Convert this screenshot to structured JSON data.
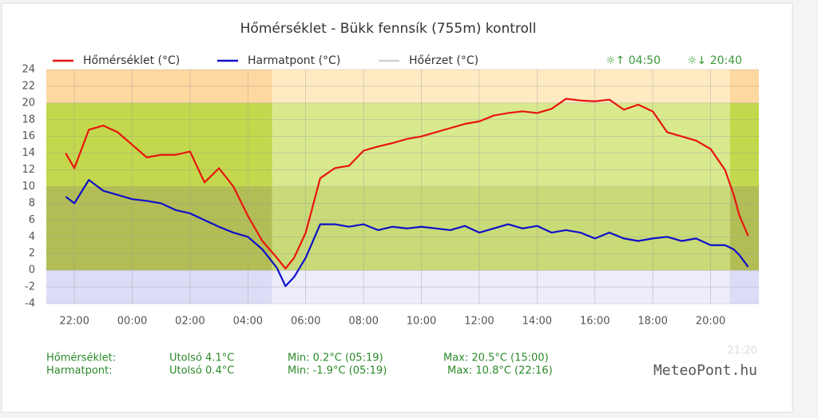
{
  "chart_data": {
    "type": "line",
    "title": "Hőmérséklet - Bükk fennsík (755m) kontroll",
    "x": [
      21.7,
      22,
      22.5,
      23,
      23.5,
      24,
      24.5,
      25,
      25.5,
      26,
      26.5,
      27,
      27.5,
      28,
      28.5,
      29,
      29.3,
      29.6,
      30,
      30.5,
      31,
      31.5,
      32,
      32.5,
      33,
      33.5,
      34,
      34.5,
      35,
      35.5,
      36,
      36.5,
      37,
      37.5,
      38,
      38.5,
      39,
      39.5,
      40,
      40.5,
      41,
      41.5,
      42,
      42.5,
      43,
      43.5,
      44,
      44.5,
      44.8,
      45,
      45.3
    ],
    "series": [
      {
        "name": "Hőmérséklet (°C)",
        "color": "#e8150f",
        "values": [
          14.0,
          12.2,
          16.8,
          17.3,
          16.5,
          15.0,
          13.5,
          13.8,
          13.8,
          14.2,
          10.5,
          12.2,
          10.0,
          6.5,
          3.5,
          1.5,
          0.2,
          1.5,
          4.5,
          11.0,
          12.2,
          12.5,
          14.3,
          14.8,
          15.2,
          15.7,
          16.0,
          16.5,
          17.0,
          17.5,
          17.8,
          18.5,
          18.8,
          19.0,
          18.8,
          19.3,
          20.5,
          20.3,
          20.2,
          20.4,
          19.2,
          19.8,
          19.0,
          16.5,
          16.0,
          15.5,
          14.5,
          12.0,
          9.0,
          6.5,
          4.1
        ]
      },
      {
        "name": "Harmatpont (°C)",
        "color": "#1010c8",
        "values": [
          8.8,
          8.0,
          10.8,
          9.5,
          9.0,
          8.5,
          8.3,
          8.0,
          7.2,
          6.8,
          6.0,
          5.2,
          4.5,
          4.0,
          2.5,
          0.3,
          -1.9,
          -0.8,
          1.5,
          5.5,
          5.5,
          5.2,
          5.5,
          4.8,
          5.2,
          5.0,
          5.2,
          5.0,
          4.8,
          5.3,
          4.5,
          5.0,
          5.5,
          5.0,
          5.3,
          4.5,
          4.8,
          4.5,
          3.8,
          4.5,
          3.8,
          3.5,
          3.8,
          4.0,
          3.5,
          3.8,
          3.0,
          3.0,
          2.5,
          1.8,
          0.4
        ]
      },
      {
        "name": "Hőérzet (°C)",
        "color": "#d0d0d0",
        "values": [
          null,
          null,
          null,
          null,
          null,
          null,
          null,
          null,
          null,
          null,
          null,
          null,
          null,
          null,
          null,
          null,
          null,
          null,
          null,
          null,
          null,
          null,
          null,
          null,
          null,
          null,
          null,
          null,
          null,
          null,
          null,
          null,
          null,
          null,
          null,
          null,
          null,
          null,
          null,
          null,
          null,
          null,
          null,
          null,
          null,
          null,
          null,
          null,
          null,
          null,
          null
        ]
      }
    ],
    "xlim": [
      21.03,
      45.67
    ],
    "xticks": [
      {
        "value": 22,
        "label": "22:00"
      },
      {
        "value": 24,
        "label": "00:00"
      },
      {
        "value": 26,
        "label": "02:00"
      },
      {
        "value": 28,
        "label": "04:00"
      },
      {
        "value": 30,
        "label": "06:00"
      },
      {
        "value": 32,
        "label": "08:00"
      },
      {
        "value": 34,
        "label": "10:00"
      },
      {
        "value": 36,
        "label": "12:00"
      },
      {
        "value": 38,
        "label": "14:00"
      },
      {
        "value": 40,
        "label": "16:00"
      },
      {
        "value": 42,
        "label": "18:00"
      },
      {
        "value": 44,
        "label": "20:00"
      }
    ],
    "ylim": [
      -4,
      24
    ],
    "yticks": [
      -4,
      -2,
      0,
      2,
      4,
      6,
      8,
      10,
      12,
      14,
      16,
      18,
      20,
      22,
      24
    ],
    "grid": true,
    "sunrise": "04:50",
    "sunset": "20:40",
    "zones": [
      {
        "from": -4,
        "to": 0,
        "night": "#dcdcf6",
        "day": "#ececfa"
      },
      {
        "from": 0,
        "to": 10,
        "night": "#b3bd55",
        "day": "#c9da78"
      },
      {
        "from": 10,
        "to": 20,
        "night": "#c3d84c",
        "day": "#d8e98e"
      },
      {
        "from": 20,
        "to": 24,
        "night": "#fdd8a0",
        "day": "#feebc2"
      }
    ],
    "stats": [
      {
        "label": "Hőmérséklet:",
        "last": "Utolsó 4.1°C",
        "min": "Min: 0.2°C (05:19)",
        "max": "Max: 20.5°C (15:00)"
      },
      {
        "label": "Harmatpont:",
        "last": "Utolsó 0.4°C",
        "min": "Min: -1.9°C (05:19)",
        "max": "Max: 10.8°C (22:16)"
      }
    ],
    "updated": "21:20",
    "brand": "MeteoPont.hu"
  }
}
